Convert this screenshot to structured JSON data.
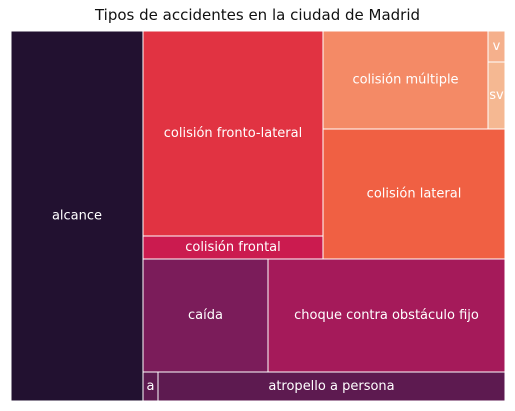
{
  "chart_data": {
    "type": "treemap",
    "title": "Tipos de accidentes en la ciudad de Madrid",
    "palette": "rocket",
    "categories": [
      {
        "label": "alcance",
        "color": "#221130"
      },
      {
        "label": "colisión fronto-lateral",
        "color": "#e13342"
      },
      {
        "label": "colisión frontal",
        "color": "#cb1b4f"
      },
      {
        "label": "colisión múltiple",
        "color": "#f48a66"
      },
      {
        "label": "v",
        "color": "#f5b08c"
      },
      {
        "label": "sv",
        "color": "#f5b892"
      },
      {
        "label": "colisión lateral",
        "color": "#f06043"
      },
      {
        "label": "caída",
        "color": "#7b1c5a"
      },
      {
        "label": "choque contra obstáculo fijo",
        "color": "#a51a5a"
      },
      {
        "label": "a",
        "color": "#5d1a50"
      },
      {
        "label": "atropello a persona",
        "color": "#5d1a50"
      }
    ]
  }
}
